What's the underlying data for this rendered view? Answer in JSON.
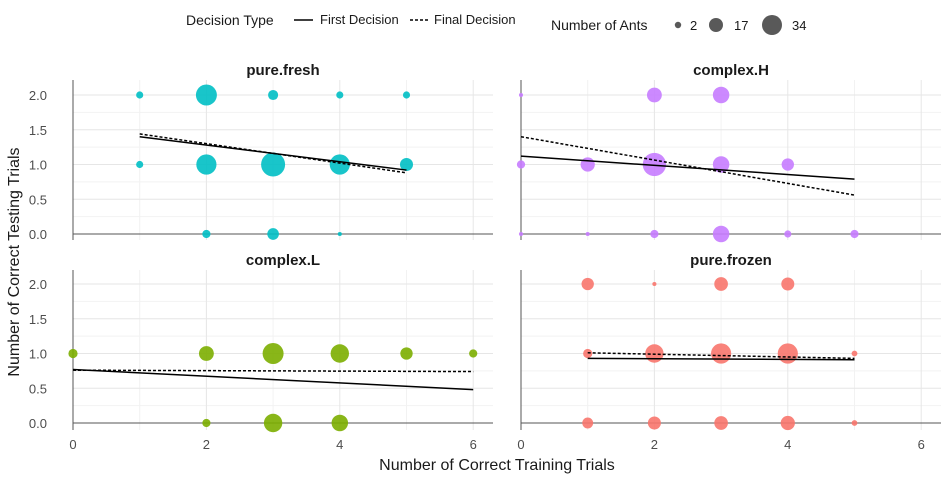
{
  "chart_data": {
    "type": "scatter",
    "xlabel": "Number of Correct Training Trials",
    "ylabel": "Number of Correct Testing Trials",
    "xlim": [
      0,
      6
    ],
    "ylim": [
      0,
      2
    ],
    "xticks": [
      0,
      2,
      4,
      6
    ],
    "yticks": [
      0.0,
      0.5,
      1.0,
      1.5,
      2.0
    ],
    "ytick_labels": [
      "0.0",
      "0.5",
      "1.0",
      "1.5",
      "2.0"
    ],
    "grid": true,
    "legend": {
      "placement": "top",
      "decision_title": "Decision Type",
      "decision_items": [
        {
          "label": "First Decision",
          "style": "solid"
        },
        {
          "label": "Final Decision",
          "style": "dashed"
        }
      ],
      "size_title": "Number of Ants",
      "size_items": [
        {
          "label": "2",
          "value": 2
        },
        {
          "label": "17",
          "value": 17
        },
        {
          "label": "34",
          "value": 34
        }
      ]
    },
    "panels": [
      {
        "title": "pure.fresh",
        "color": "#00BFC4",
        "points": [
          {
            "x": 1,
            "y": 2,
            "n": 3
          },
          {
            "x": 2,
            "y": 2,
            "n": 26
          },
          {
            "x": 3,
            "y": 2,
            "n": 6
          },
          {
            "x": 4,
            "y": 2,
            "n": 3
          },
          {
            "x": 5,
            "y": 2,
            "n": 3
          },
          {
            "x": 1,
            "y": 1,
            "n": 3
          },
          {
            "x": 2,
            "y": 1,
            "n": 24
          },
          {
            "x": 3,
            "y": 1,
            "n": 34
          },
          {
            "x": 4,
            "y": 1,
            "n": 24
          },
          {
            "x": 5,
            "y": 1,
            "n": 10
          },
          {
            "x": 2,
            "y": 0,
            "n": 4
          },
          {
            "x": 3,
            "y": 0,
            "n": 8
          },
          {
            "x": 4,
            "y": 0,
            "n": 1
          }
        ],
        "first_line": {
          "x": [
            1,
            5
          ],
          "y": [
            1.4,
            0.92
          ]
        },
        "final_line": {
          "x": [
            1,
            5
          ],
          "y": [
            1.44,
            0.88
          ]
        }
      },
      {
        "title": "complex.H",
        "color": "#C77CFF",
        "points": [
          {
            "x": 0,
            "y": 2,
            "n": 1
          },
          {
            "x": 2,
            "y": 2,
            "n": 13
          },
          {
            "x": 3,
            "y": 2,
            "n": 16
          },
          {
            "x": 0,
            "y": 1,
            "n": 4
          },
          {
            "x": 1,
            "y": 1,
            "n": 12
          },
          {
            "x": 2,
            "y": 1,
            "n": 32
          },
          {
            "x": 3,
            "y": 1,
            "n": 16
          },
          {
            "x": 4,
            "y": 1,
            "n": 9
          },
          {
            "x": 0,
            "y": 0,
            "n": 1
          },
          {
            "x": 1,
            "y": 0,
            "n": 1
          },
          {
            "x": 2,
            "y": 0,
            "n": 4
          },
          {
            "x": 3,
            "y": 0,
            "n": 16
          },
          {
            "x": 4,
            "y": 0,
            "n": 3
          },
          {
            "x": 5,
            "y": 0,
            "n": 4
          }
        ],
        "first_line": {
          "x": [
            0,
            5
          ],
          "y": [
            1.12,
            0.79
          ]
        },
        "final_line": {
          "x": [
            0,
            5
          ],
          "y": [
            1.4,
            0.56
          ]
        }
      },
      {
        "title": "complex.L",
        "color": "#7CAE00",
        "points": [
          {
            "x": 0,
            "y": 1,
            "n": 5
          },
          {
            "x": 2,
            "y": 1,
            "n": 13
          },
          {
            "x": 3,
            "y": 1,
            "n": 26
          },
          {
            "x": 4,
            "y": 1,
            "n": 20
          },
          {
            "x": 5,
            "y": 1,
            "n": 9
          },
          {
            "x": 6,
            "y": 1,
            "n": 4
          },
          {
            "x": 2,
            "y": 0,
            "n": 4
          },
          {
            "x": 3,
            "y": 0,
            "n": 20
          },
          {
            "x": 4,
            "y": 0,
            "n": 16
          }
        ],
        "first_line": {
          "x": [
            0,
            6
          ],
          "y": [
            0.77,
            0.48
          ]
        },
        "final_line": {
          "x": [
            0,
            6
          ],
          "y": [
            0.76,
            0.74
          ]
        }
      },
      {
        "title": "pure.frozen",
        "color": "#F8766D",
        "points": [
          {
            "x": 1,
            "y": 2,
            "n": 9
          },
          {
            "x": 2,
            "y": 2,
            "n": 1
          },
          {
            "x": 3,
            "y": 2,
            "n": 11
          },
          {
            "x": 4,
            "y": 2,
            "n": 10
          },
          {
            "x": 1,
            "y": 1,
            "n": 5
          },
          {
            "x": 2,
            "y": 1,
            "n": 20
          },
          {
            "x": 3,
            "y": 1,
            "n": 24
          },
          {
            "x": 4,
            "y": 1,
            "n": 24
          },
          {
            "x": 5,
            "y": 1,
            "n": 2
          },
          {
            "x": 1,
            "y": 0,
            "n": 7
          },
          {
            "x": 2,
            "y": 0,
            "n": 10
          },
          {
            "x": 3,
            "y": 0,
            "n": 11
          },
          {
            "x": 4,
            "y": 0,
            "n": 12
          },
          {
            "x": 5,
            "y": 0,
            "n": 2
          }
        ],
        "first_line": {
          "x": [
            1,
            5
          ],
          "y": [
            0.93,
            0.91
          ]
        },
        "final_line": {
          "x": [
            1,
            5
          ],
          "y": [
            1.01,
            0.93
          ]
        }
      }
    ]
  }
}
